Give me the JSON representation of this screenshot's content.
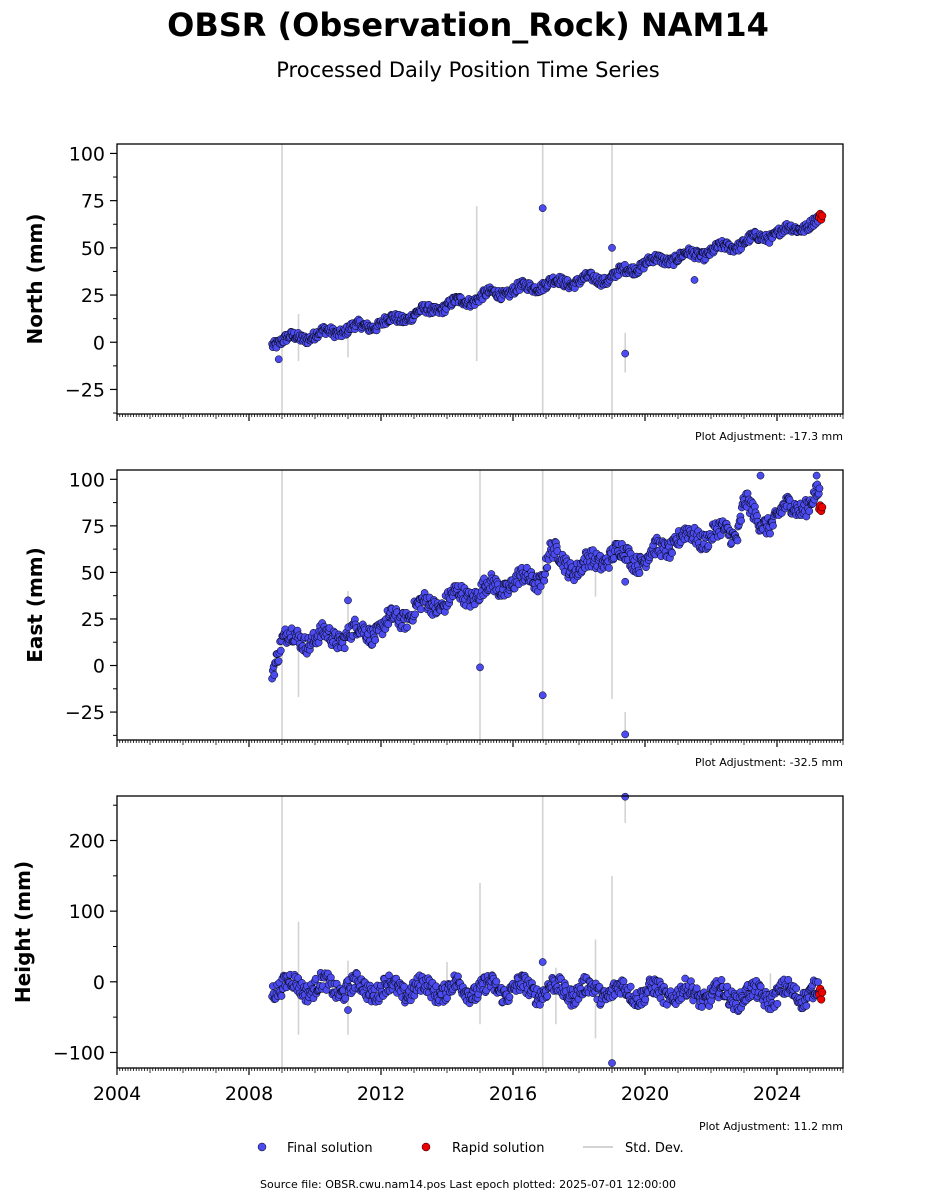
{
  "title": "OBSR (Observation_Rock) NAM14",
  "subtitle": "Processed Daily Position Time Series",
  "colors": {
    "final": "#4b4bef",
    "rapid": "#ee0000",
    "stddev": "#d3d3d3",
    "marker_edge": "#000000"
  },
  "legend": {
    "final": "Final solution",
    "rapid": "Rapid solution",
    "stddev": "Std. Dev."
  },
  "source_note": "Source file: OBSR.cwu.nam14.pos  Last epoch plotted: 2025-07-01 12:00:00",
  "chart_data": [
    {
      "type": "scatter",
      "ylabel": "North (mm)",
      "adjustment": "Plot Adjustment: -17.3 mm",
      "xlim": [
        2004.0,
        2026.0
      ],
      "ylim": [
        -38,
        105
      ],
      "yticks": [
        {
          "v": -25,
          "label": "−25"
        },
        {
          "v": 0,
          "label": "0"
        },
        {
          "v": 25,
          "label": "25"
        },
        {
          "v": 50,
          "label": "50"
        },
        {
          "v": 75,
          "label": "75"
        },
        {
          "v": 100,
          "label": "100"
        }
      ],
      "trend": [
        [
          2008.7,
          0
        ],
        [
          2012.0,
          10
        ],
        [
          2015.0,
          24
        ],
        [
          2017.0,
          31
        ],
        [
          2018.9,
          34
        ],
        [
          2020.0,
          42
        ],
        [
          2022.0,
          48
        ],
        [
          2023.2,
          54
        ],
        [
          2025.3,
          64
        ]
      ],
      "scatter_amp": 3,
      "final_outliers": [
        [
          2016.9,
          71
        ],
        [
          2019.0,
          50
        ],
        [
          2019.4,
          -6
        ],
        [
          2008.9,
          -9
        ],
        [
          2021.5,
          33
        ]
      ],
      "rapid": [
        [
          2025.28,
          66
        ],
        [
          2025.31,
          68
        ],
        [
          2025.34,
          65
        ],
        [
          2025.37,
          67
        ]
      ],
      "stddev_bars": [
        [
          2009.0,
          -38,
          105
        ],
        [
          2016.9,
          -38,
          105
        ],
        [
          2019.0,
          -38,
          105
        ],
        [
          2014.9,
          -10,
          72
        ],
        [
          2019.4,
          -16,
          5
        ],
        [
          2009.5,
          -10,
          15
        ],
        [
          2011.0,
          -8,
          8
        ]
      ]
    },
    {
      "type": "scatter",
      "ylabel": "East (mm)",
      "adjustment": "Plot Adjustment: -32.5 mm",
      "xlim": [
        2004.0,
        2026.0
      ],
      "ylim": [
        -40,
        105
      ],
      "yticks": [
        {
          "v": -25,
          "label": "−25"
        },
        {
          "v": 0,
          "label": "0"
        },
        {
          "v": 25,
          "label": "25"
        },
        {
          "v": 50,
          "label": "50"
        },
        {
          "v": 75,
          "label": "75"
        },
        {
          "v": 100,
          "label": "100"
        }
      ],
      "trend": [
        [
          2008.7,
          0
        ],
        [
          2009.0,
          14
        ],
        [
          2010.5,
          15
        ],
        [
          2012.0,
          20
        ],
        [
          2013.0,
          30
        ],
        [
          2015.0,
          40
        ],
        [
          2016.9,
          48
        ],
        [
          2017.1,
          60
        ],
        [
          2018.0,
          52
        ],
        [
          2019.0,
          60
        ],
        [
          2020.0,
          57
        ],
        [
          2021.0,
          68
        ],
        [
          2022.8,
          72
        ],
        [
          2023.0,
          90
        ],
        [
          2023.4,
          75
        ],
        [
          2024.5,
          85
        ],
        [
          2025.3,
          90
        ]
      ],
      "scatter_amp": 6,
      "final_outliers": [
        [
          2011.0,
          35
        ],
        [
          2015.0,
          -1
        ],
        [
          2016.9,
          -16
        ],
        [
          2019.4,
          -37
        ],
        [
          2019.4,
          45
        ],
        [
          2023.5,
          102
        ],
        [
          2025.2,
          102
        ]
      ],
      "rapid": [
        [
          2025.28,
          84
        ],
        [
          2025.31,
          86
        ],
        [
          2025.34,
          83
        ],
        [
          2025.37,
          85
        ]
      ],
      "stddev_bars": [
        [
          2009.0,
          -40,
          105
        ],
        [
          2015.0,
          -40,
          105
        ],
        [
          2016.9,
          -40,
          105
        ],
        [
          2019.0,
          -18,
          105
        ],
        [
          2009.5,
          -17,
          15
        ],
        [
          2011.0,
          20,
          40
        ],
        [
          2018.5,
          37,
          62
        ],
        [
          2019.4,
          -38,
          -25
        ]
      ]
    },
    {
      "type": "scatter",
      "ylabel": "Height (mm)",
      "adjustment": "Plot Adjustment: 11.2 mm",
      "xlim": [
        2004.0,
        2026.0
      ],
      "ylim": [
        -122,
        263
      ],
      "yticks": [
        {
          "v": -100,
          "label": "−100"
        },
        {
          "v": 0,
          "label": "0"
        },
        {
          "v": 100,
          "label": "100"
        },
        {
          "v": 200,
          "label": "200"
        }
      ],
      "trend": [
        [
          2008.7,
          -5
        ],
        [
          2012.0,
          -10
        ],
        [
          2016.0,
          -10
        ],
        [
          2020.0,
          -15
        ],
        [
          2023.0,
          -20
        ],
        [
          2025.3,
          -15
        ]
      ],
      "scatter_amp": 16,
      "final_outliers": [
        [
          2016.9,
          28
        ],
        [
          2019.4,
          262
        ],
        [
          2019.0,
          -115
        ],
        [
          2011.0,
          -40
        ]
      ],
      "rapid": [
        [
          2025.28,
          -18
        ],
        [
          2025.31,
          -10
        ],
        [
          2025.34,
          -25
        ],
        [
          2025.37,
          -15
        ]
      ],
      "stddev_bars": [
        [
          2009.0,
          -122,
          263
        ],
        [
          2016.9,
          -122,
          263
        ],
        [
          2019.0,
          -122,
          150
        ],
        [
          2015.0,
          -60,
          140
        ],
        [
          2009.5,
          -75,
          85
        ],
        [
          2011.0,
          -75,
          30
        ],
        [
          2014.0,
          -30,
          28
        ],
        [
          2018.5,
          -80,
          60
        ],
        [
          2017.3,
          -60,
          20
        ],
        [
          2019.4,
          225,
          263
        ],
        [
          2023.8,
          -30,
          12
        ]
      ]
    }
  ],
  "xticks": [
    {
      "v": 2004,
      "label": "2004"
    },
    {
      "v": 2008,
      "label": "2008"
    },
    {
      "v": 2012,
      "label": "2012"
    },
    {
      "v": 2016,
      "label": "2016"
    },
    {
      "v": 2020,
      "label": "2020"
    },
    {
      "v": 2024,
      "label": "2024"
    }
  ]
}
